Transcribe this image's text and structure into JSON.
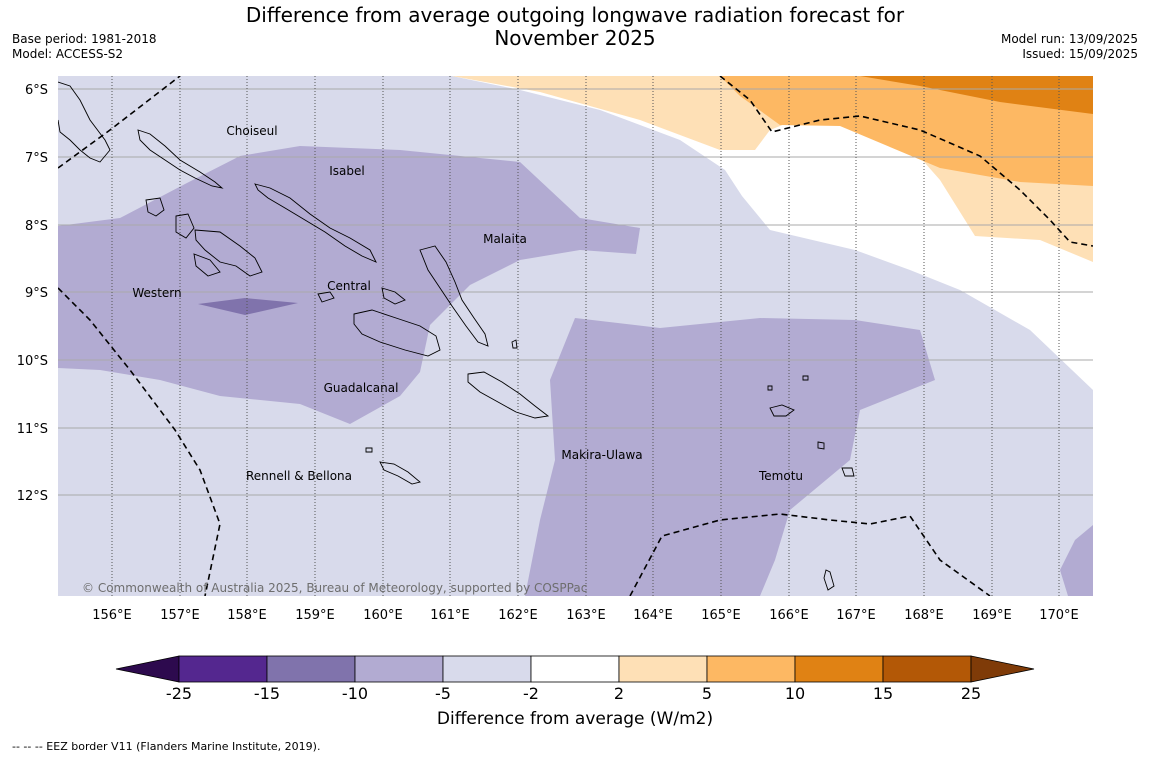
{
  "title_line1": "Difference from average outgoing longwave radiation forecast for",
  "title_line2": "November 2025",
  "base_period": "Base period: 1981-2018",
  "model": "Model: ACCESS-S2",
  "model_run": "Model run: 13/09/2025",
  "issued": "Issued: 15/09/2025",
  "copyright": "© Commonwealth of Australia 2025, Bureau of Meteorology, supported by COSPPac",
  "lat_labels": [
    "6°S",
    "7°S",
    "8°S",
    "9°S",
    "10°S",
    "11°S",
    "12°S"
  ],
  "lon_labels": [
    "156°E",
    "157°E",
    "158°E",
    "159°E",
    "160°E",
    "161°E",
    "162°E",
    "163°E",
    "164°E",
    "165°E",
    "166°E",
    "167°E",
    "168°E",
    "169°E",
    "170°E"
  ],
  "regions": {
    "choiseul": "Choiseul",
    "isabel": "Isabel",
    "malaita": "Malaita",
    "western": "Western",
    "central": "Central",
    "guadalcanal": "Guadalcanal",
    "makira": "Makira-Ulawa",
    "temotu": "Temotu",
    "rennell": "Rennell & Bellona"
  },
  "colorbar": {
    "ticks": [
      "-25",
      "-15",
      "-10",
      "-5",
      "-2",
      "2",
      "5",
      "10",
      "15",
      "25"
    ],
    "colors": {
      "extend_low": "#2d0a4e",
      "n25_15": "#54278f",
      "n15_10": "#8073ac",
      "n10_5": "#b2abd2",
      "n5_2": "#d8daeb",
      "n2_2": "#ffffff",
      "p2_5": "#fee0b6",
      "p5_10": "#fdb863",
      "p10_15": "#e08214",
      "p15_25": "#b35806",
      "extend_high": "#7f3b08"
    },
    "label": "Difference from average (W/m2)"
  },
  "footnote": "--  --  -- EEZ border V11 (Flanders Marine Institute, 2019)."
}
